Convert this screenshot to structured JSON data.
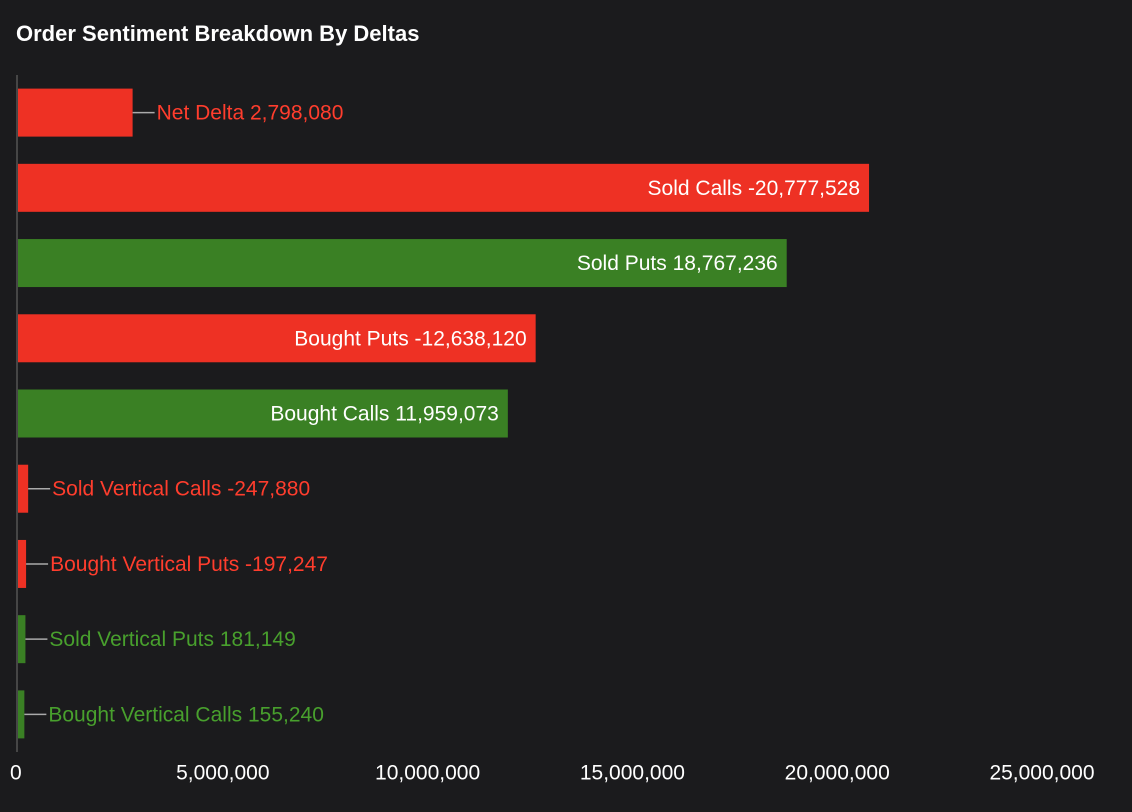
{
  "chart_data": {
    "type": "bar",
    "orientation": "horizontal",
    "title": "Order Sentiment Breakdown By Deltas",
    "categories": [
      "Net Delta",
      "Sold Calls",
      "Sold Puts",
      "Bought Puts",
      "Bought Calls",
      "Sold Vertical Calls",
      "Bought Vertical Puts",
      "Sold Vertical Puts",
      "Bought Vertical Calls"
    ],
    "values": [
      2798080,
      -20777528,
      18767236,
      -12638120,
      11959073,
      -247880,
      -197247,
      181149,
      155240
    ],
    "value_labels": [
      "2,798,080",
      "-20,777,528",
      "18,767,236",
      "-12,638,120",
      "11,959,073",
      "-247,880",
      "-197,247",
      "181,149",
      "155,240"
    ],
    "colors": [
      "#ee3124",
      "#ee3124",
      "#3a8024",
      "#ee3124",
      "#3a8024",
      "#ee3124",
      "#ee3124",
      "#3a8024",
      "#3a8024"
    ],
    "xlim": [
      0,
      25000000
    ],
    "xticks": [
      0,
      {
        "value": 5000000,
        "label": "5,000,000"
      },
      {
        "value": 10000000,
        "label": "10,000,000"
      },
      {
        "value": 15000000,
        "label": "15,000,000"
      },
      {
        "value": 20000000,
        "label": "20,000,000"
      },
      {
        "value": 25000000,
        "label": "25,000,000"
      }
    ],
    "grid": false
  }
}
